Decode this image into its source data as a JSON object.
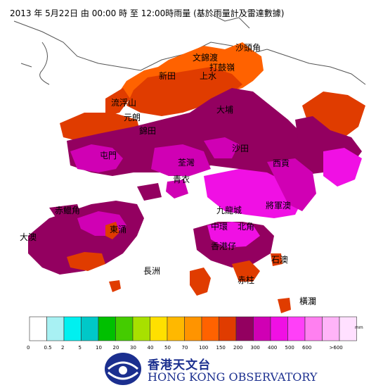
{
  "title": "2013 年  5月22日 由 00:00 時 至 12:00時雨量 (基於雨量計及雷達數據)",
  "places": [
    {
      "id": "sha-tau-kok",
      "label": "沙頭角"
    },
    {
      "id": "ta-kwu-ling",
      "label": "打鼓嶺"
    },
    {
      "id": "man-kam-to",
      "label": "文錦渡"
    },
    {
      "id": "san-tin",
      "label": "新田"
    },
    {
      "id": "sheung-shui",
      "label": "上水"
    },
    {
      "id": "lau-fau-shan",
      "label": "流浮山"
    },
    {
      "id": "yuen-long",
      "label": "元朗"
    },
    {
      "id": "tai-po",
      "label": "大埔"
    },
    {
      "id": "kam-tin",
      "label": "錦田"
    },
    {
      "id": "tuen-mun",
      "label": "屯門"
    },
    {
      "id": "sha-tin",
      "label": "沙田"
    },
    {
      "id": "tsuen-wan",
      "label": "荃灣"
    },
    {
      "id": "sai-kung",
      "label": "西貢"
    },
    {
      "id": "tsing-yi",
      "label": "青衣"
    },
    {
      "id": "chek-lap-kok",
      "label": "赤鱲角"
    },
    {
      "id": "kowloon-city",
      "label": "九龍城"
    },
    {
      "id": "tseung-kwan-o",
      "label": "將軍澳"
    },
    {
      "id": "tai-o",
      "label": "大澳"
    },
    {
      "id": "tung-chung",
      "label": "東涌"
    },
    {
      "id": "central",
      "label": "中環"
    },
    {
      "id": "north-point",
      "label": "北角"
    },
    {
      "id": "aberdeen",
      "label": "香港仔"
    },
    {
      "id": "cheung-chau",
      "label": "長洲"
    },
    {
      "id": "shek-o",
      "label": "石澳"
    },
    {
      "id": "stanley",
      "label": "赤柱"
    },
    {
      "id": "waglan",
      "label": "橫瀾"
    }
  ],
  "legend": {
    "unit": "mm",
    "colors": [
      "#ffffff",
      "#a8f1f3",
      "#00f0f0",
      "#00c8c8",
      "#00c000",
      "#44cc00",
      "#a8e000",
      "#ffe000",
      "#ffb800",
      "#ff9400",
      "#ff6200",
      "#e03c00",
      "#930060",
      "#d000b4",
      "#f010e4",
      "#ff40f8",
      "#ff80f0",
      "#ffb4f8",
      "#ffe0ff"
    ],
    "ticks": [
      "0",
      "0.5",
      "2",
      "5",
      "10",
      "20",
      "30",
      "40",
      "50",
      "70",
      "100",
      "150",
      "200",
      "300",
      "400",
      "500",
      "600",
      ">600"
    ]
  },
  "logo": {
    "name_cn": "香港天文台",
    "name_en": "HONG KONG OBSERVATORY"
  }
}
